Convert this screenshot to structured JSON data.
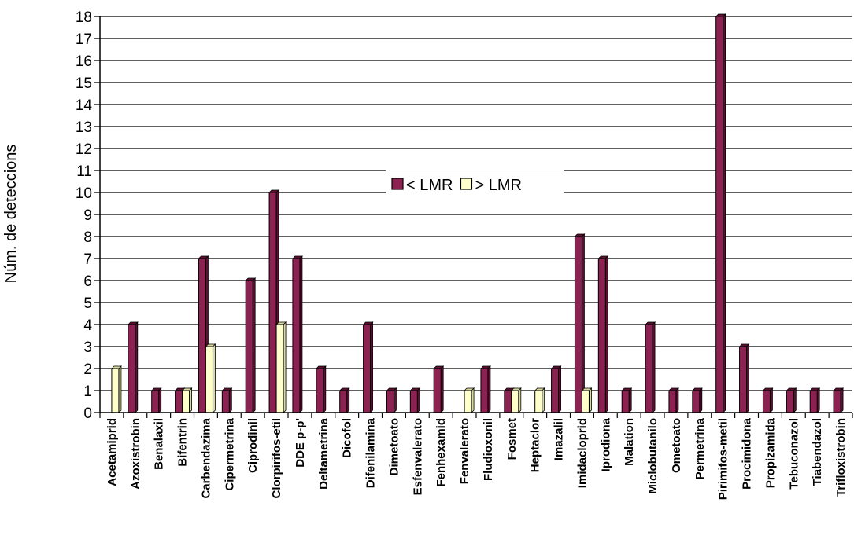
{
  "chart_data": {
    "type": "bar",
    "ylabel": "Núm. de deteccions",
    "xlabel": "",
    "ylim": [
      0,
      18
    ],
    "grid": true,
    "legend_position": "center",
    "categories": [
      "Acetamiprid",
      "Azoxistrobin",
      "Benalaxil",
      "Bifentrin",
      "Carbendazima",
      "Cipermetrina",
      "Ciprodinil",
      "Clorpirifos-etil",
      "DDE p-p'",
      "Deltametrina",
      "Dicofol",
      "Difenilamina",
      "Dimetoato",
      "Esfenvalerato",
      "Fenhexamid",
      "Fenvalerato",
      "Fludioxonil",
      "Fosmet",
      "Heptaclor",
      "Imazalil",
      "Imidacloprid",
      "Iprodiona",
      "Malation",
      "Miclobutanilo",
      "Ometoato",
      "Permetrina",
      "Pirimifos-metil",
      "Procimidona",
      "Propizamida",
      "Tebuconazol",
      "Tiabendazol",
      "Trifloxistrobin"
    ],
    "series": [
      {
        "name": "< LMR",
        "color": "#8b2252",
        "values": [
          0,
          4,
          1,
          1,
          7,
          1,
          6,
          10,
          7,
          2,
          1,
          4,
          1,
          1,
          2,
          0,
          2,
          1,
          0,
          2,
          8,
          7,
          1,
          4,
          1,
          1,
          18,
          3,
          1,
          1,
          1,
          1
        ]
      },
      {
        "name": "> LMR",
        "color": "#ffffcc",
        "values": [
          2,
          0,
          0,
          1,
          3,
          0,
          0,
          4,
          0,
          0,
          0,
          0,
          0,
          0,
          0,
          1,
          0,
          1,
          1,
          0,
          1,
          0,
          0,
          0,
          0,
          0,
          0,
          0,
          0,
          0,
          0,
          0
        ]
      }
    ]
  }
}
